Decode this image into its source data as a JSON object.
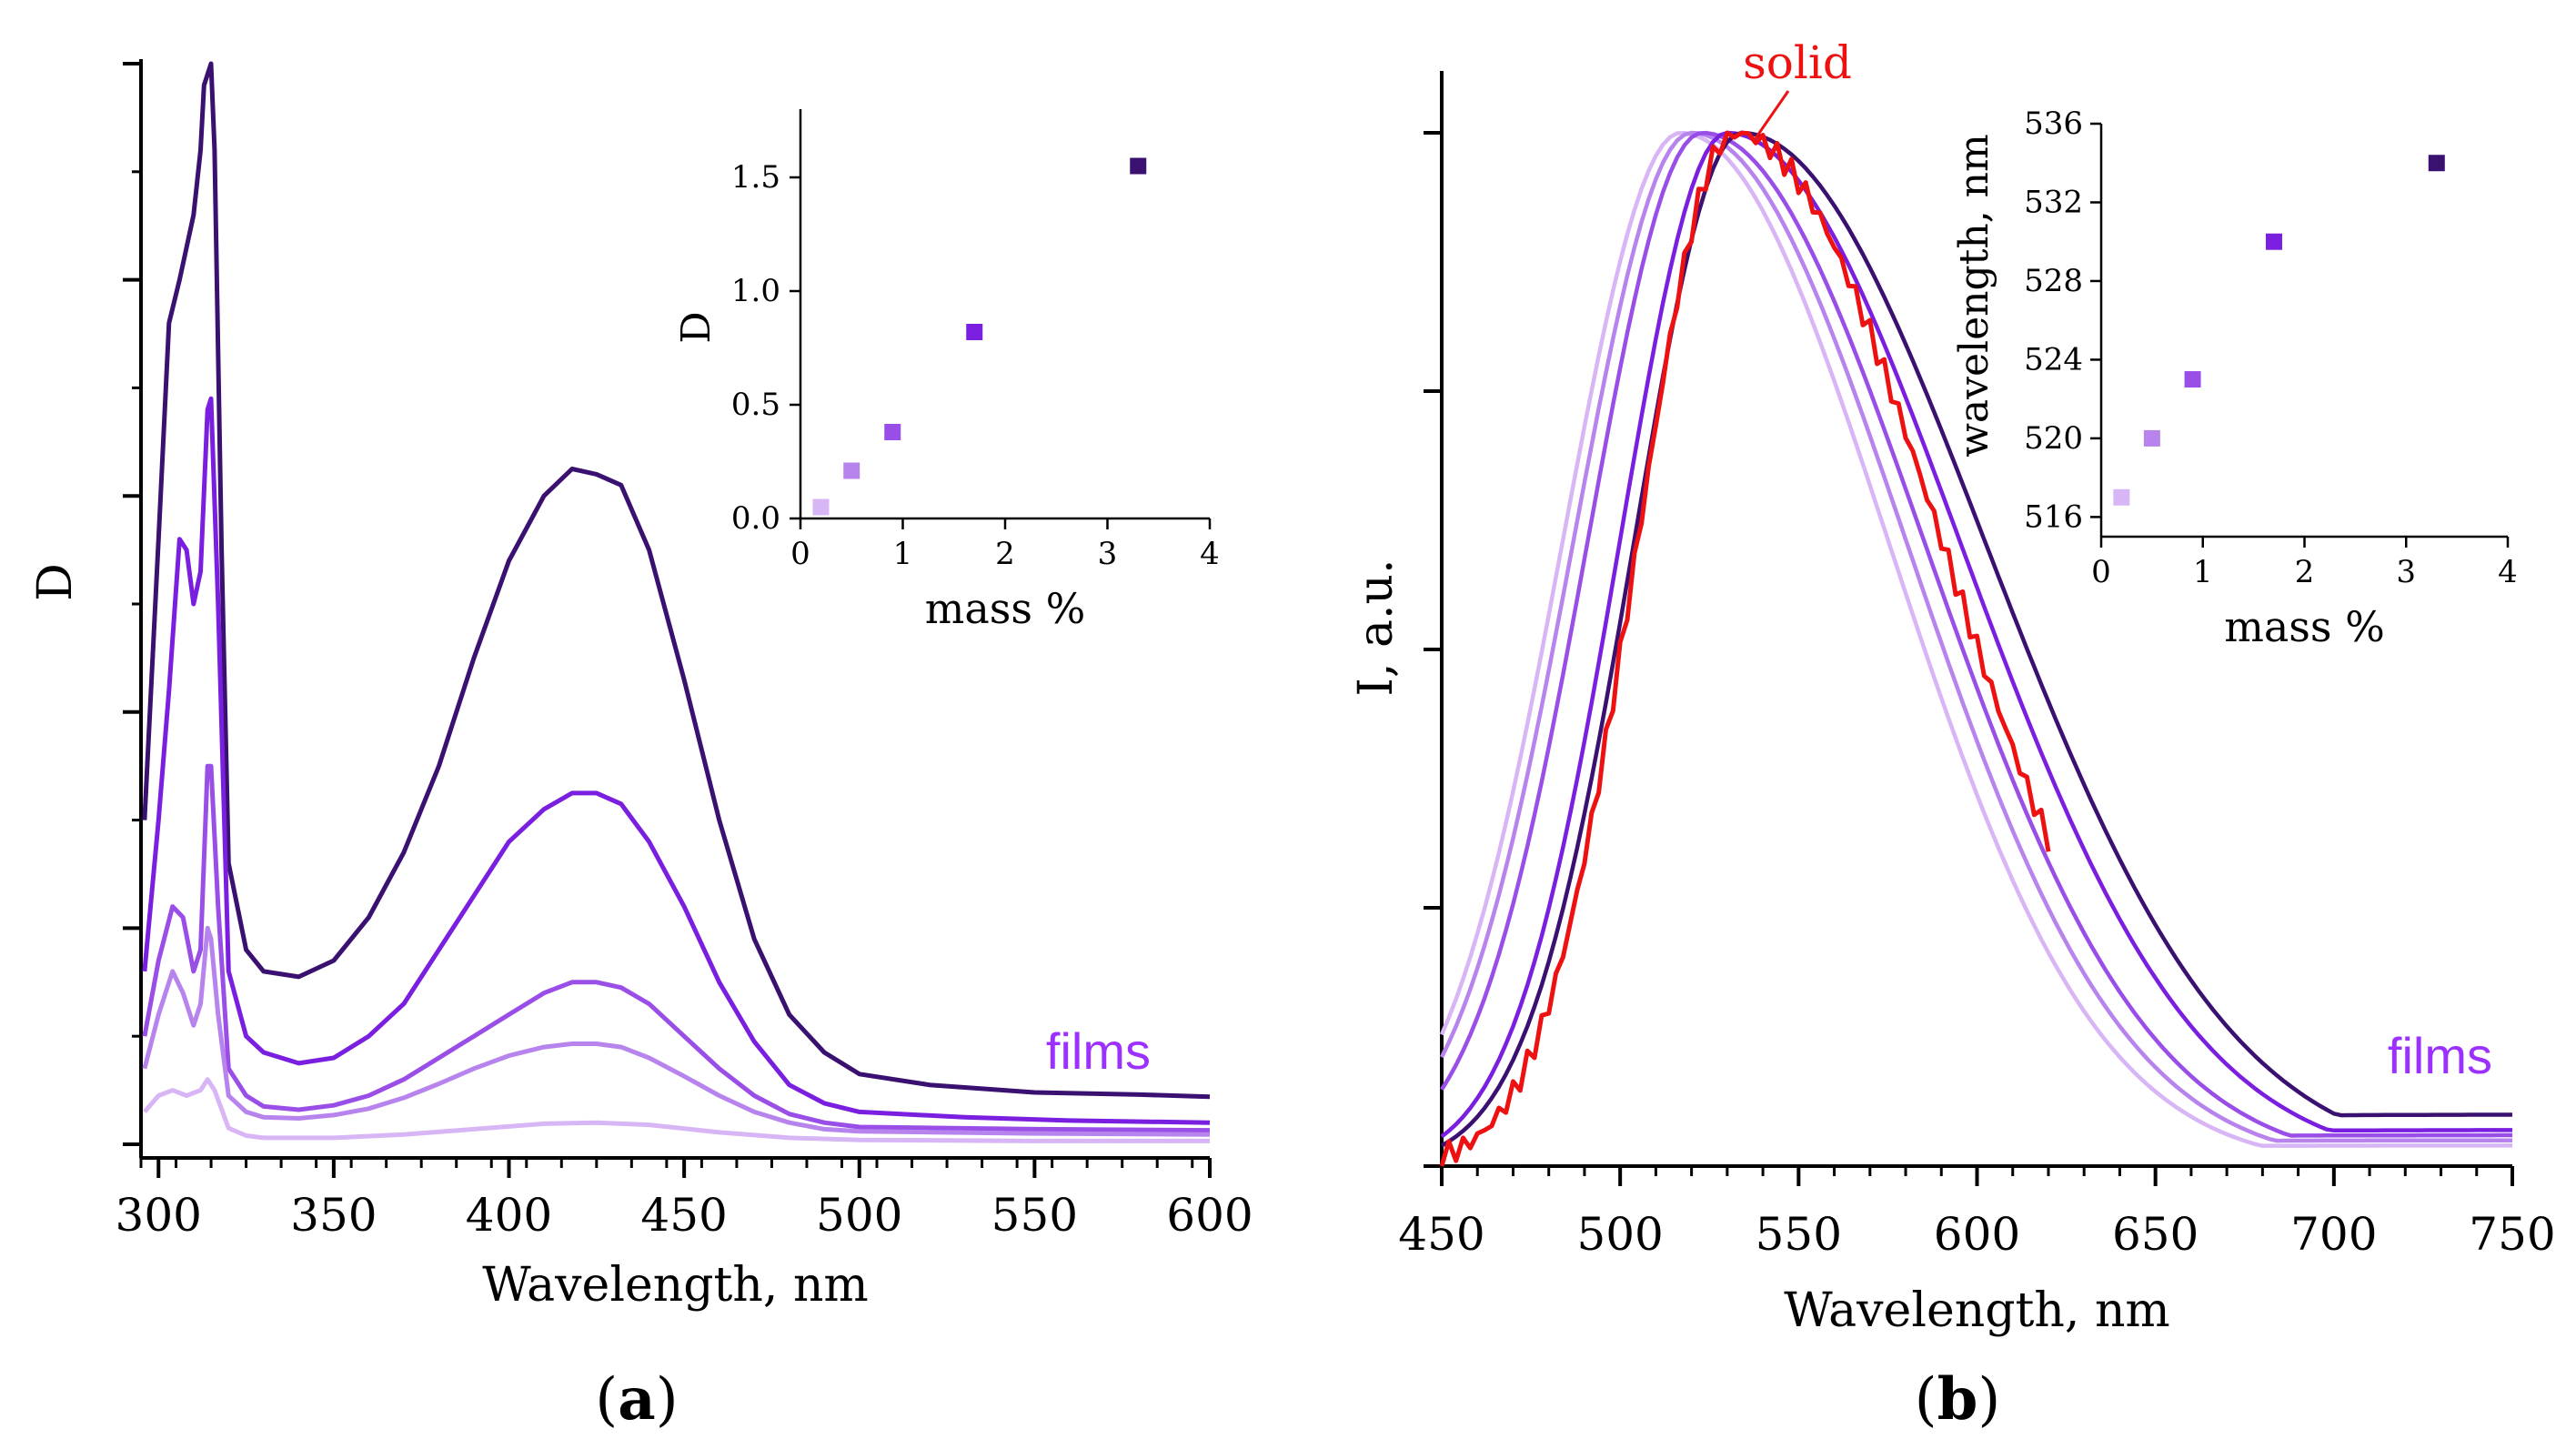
{
  "colors": {
    "dark": "#3a1070",
    "c2": "#7a1fe0",
    "c3": "#9a4ee8",
    "c4": "#b784ee",
    "c5": "#d8b6f6",
    "solid": "#ee1111",
    "films_text": "#9b30ff",
    "axis": "#000000"
  },
  "panel_labels": {
    "a": "a",
    "b": "b"
  },
  "chart_data": [
    {
      "id": "panel-a",
      "type": "line",
      "title": "",
      "xlabel": "Wavelength, nm",
      "ylabel": "D",
      "xlim": [
        295,
        600
      ],
      "ylim": [
        0,
        1
      ],
      "x_ticks": [
        300,
        350,
        400,
        450,
        500,
        550,
        600
      ],
      "y_ticks_unlabeled": [
        0,
        0.2,
        0.4,
        0.6,
        0.8,
        1.0
      ],
      "annotation": "films",
      "series": [
        {
          "name": "3.3 mass %",
          "color": "dark",
          "points": [
            [
              296,
              0.3
            ],
            [
              300,
              0.56
            ],
            [
              303,
              0.76
            ],
            [
              306,
              0.8
            ],
            [
              308,
              0.83
            ],
            [
              310,
              0.86
            ],
            [
              312,
              0.92
            ],
            [
              313,
              0.98
            ],
            [
              315,
              1.0
            ],
            [
              316,
              0.92
            ],
            [
              318,
              0.55
            ],
            [
              320,
              0.26
            ],
            [
              325,
              0.18
            ],
            [
              330,
              0.16
            ],
            [
              340,
              0.155
            ],
            [
              350,
              0.17
            ],
            [
              360,
              0.21
            ],
            [
              370,
              0.27
            ],
            [
              380,
              0.35
            ],
            [
              390,
              0.45
            ],
            [
              400,
              0.54
            ],
            [
              410,
              0.6
            ],
            [
              418,
              0.625
            ],
            [
              425,
              0.62
            ],
            [
              432,
              0.61
            ],
            [
              440,
              0.55
            ],
            [
              450,
              0.43
            ],
            [
              460,
              0.3
            ],
            [
              470,
              0.19
            ],
            [
              480,
              0.12
            ],
            [
              490,
              0.085
            ],
            [
              500,
              0.065
            ],
            [
              520,
              0.055
            ],
            [
              550,
              0.048
            ],
            [
              580,
              0.046
            ],
            [
              600,
              0.044
            ]
          ]
        },
        {
          "name": "1.7 mass %",
          "color": "c2",
          "points": [
            [
              296,
              0.16
            ],
            [
              300,
              0.3
            ],
            [
              303,
              0.42
            ],
            [
              306,
              0.56
            ],
            [
              308,
              0.55
            ],
            [
              310,
              0.5
            ],
            [
              312,
              0.53
            ],
            [
              314,
              0.68
            ],
            [
              315,
              0.69
            ],
            [
              317,
              0.5
            ],
            [
              320,
              0.16
            ],
            [
              325,
              0.1
            ],
            [
              330,
              0.085
            ],
            [
              340,
              0.075
            ],
            [
              350,
              0.08
            ],
            [
              360,
              0.1
            ],
            [
              370,
              0.13
            ],
            [
              380,
              0.18
            ],
            [
              390,
              0.23
            ],
            [
              400,
              0.28
            ],
            [
              410,
              0.31
            ],
            [
              418,
              0.325
            ],
            [
              425,
              0.325
            ],
            [
              432,
              0.315
            ],
            [
              440,
              0.28
            ],
            [
              450,
              0.22
            ],
            [
              460,
              0.15
            ],
            [
              470,
              0.095
            ],
            [
              480,
              0.055
            ],
            [
              490,
              0.038
            ],
            [
              500,
              0.03
            ],
            [
              530,
              0.025
            ],
            [
              560,
              0.022
            ],
            [
              600,
              0.02
            ]
          ]
        },
        {
          "name": "0.9 mass %",
          "color": "c3",
          "points": [
            [
              296,
              0.1
            ],
            [
              300,
              0.17
            ],
            [
              304,
              0.22
            ],
            [
              307,
              0.21
            ],
            [
              310,
              0.16
            ],
            [
              312,
              0.18
            ],
            [
              314,
              0.35
            ],
            [
              315,
              0.35
            ],
            [
              317,
              0.22
            ],
            [
              320,
              0.07
            ],
            [
              325,
              0.045
            ],
            [
              330,
              0.035
            ],
            [
              340,
              0.032
            ],
            [
              350,
              0.036
            ],
            [
              360,
              0.045
            ],
            [
              370,
              0.06
            ],
            [
              380,
              0.08
            ],
            [
              390,
              0.1
            ],
            [
              400,
              0.12
            ],
            [
              410,
              0.14
            ],
            [
              418,
              0.15
            ],
            [
              425,
              0.15
            ],
            [
              432,
              0.145
            ],
            [
              440,
              0.13
            ],
            [
              450,
              0.1
            ],
            [
              460,
              0.07
            ],
            [
              470,
              0.045
            ],
            [
              480,
              0.028
            ],
            [
              490,
              0.02
            ],
            [
              500,
              0.016
            ],
            [
              550,
              0.014
            ],
            [
              600,
              0.013
            ]
          ]
        },
        {
          "name": "0.5 mass %",
          "color": "c4",
          "points": [
            [
              296,
              0.07
            ],
            [
              300,
              0.12
            ],
            [
              304,
              0.16
            ],
            [
              307,
              0.14
            ],
            [
              310,
              0.11
            ],
            [
              312,
              0.13
            ],
            [
              314,
              0.2
            ],
            [
              315,
              0.19
            ],
            [
              317,
              0.12
            ],
            [
              320,
              0.045
            ],
            [
              325,
              0.03
            ],
            [
              330,
              0.025
            ],
            [
              340,
              0.024
            ],
            [
              350,
              0.027
            ],
            [
              360,
              0.033
            ],
            [
              370,
              0.043
            ],
            [
              380,
              0.056
            ],
            [
              390,
              0.07
            ],
            [
              400,
              0.082
            ],
            [
              410,
              0.09
            ],
            [
              418,
              0.093
            ],
            [
              425,
              0.093
            ],
            [
              432,
              0.09
            ],
            [
              440,
              0.08
            ],
            [
              450,
              0.063
            ],
            [
              460,
              0.045
            ],
            [
              470,
              0.03
            ],
            [
              480,
              0.02
            ],
            [
              490,
              0.014
            ],
            [
              500,
              0.012
            ],
            [
              550,
              0.01
            ],
            [
              600,
              0.009
            ]
          ]
        },
        {
          "name": "0.2 mass %",
          "color": "c5",
          "points": [
            [
              296,
              0.03
            ],
            [
              300,
              0.045
            ],
            [
              304,
              0.05
            ],
            [
              308,
              0.045
            ],
            [
              312,
              0.05
            ],
            [
              314,
              0.06
            ],
            [
              316,
              0.05
            ],
            [
              320,
              0.015
            ],
            [
              325,
              0.008
            ],
            [
              330,
              0.006
            ],
            [
              350,
              0.006
            ],
            [
              370,
              0.009
            ],
            [
              390,
              0.014
            ],
            [
              410,
              0.019
            ],
            [
              425,
              0.02
            ],
            [
              440,
              0.018
            ],
            [
              460,
              0.011
            ],
            [
              480,
              0.006
            ],
            [
              500,
              0.004
            ],
            [
              550,
              0.003
            ],
            [
              600,
              0.003
            ]
          ]
        }
      ],
      "inset": {
        "xlabel": "mass %",
        "ylabel": "D",
        "xlim": [
          0,
          4
        ],
        "ylim": [
          0,
          1.8
        ],
        "x_ticks": [
          0,
          1,
          2,
          3,
          4
        ],
        "y_ticks": [
          0.0,
          0.5,
          1.0,
          1.5
        ],
        "y_tick_labels": [
          "0.0",
          "0.5",
          "1.0",
          "1.5"
        ],
        "points": [
          {
            "x": 0.2,
            "y": 0.05,
            "color": "c5"
          },
          {
            "x": 0.5,
            "y": 0.21,
            "color": "c4"
          },
          {
            "x": 0.9,
            "y": 0.38,
            "color": "c3"
          },
          {
            "x": 1.7,
            "y": 0.82,
            "color": "c2"
          },
          {
            "x": 3.3,
            "y": 1.55,
            "color": "dark"
          }
        ]
      }
    },
    {
      "id": "panel-b",
      "type": "line",
      "title": "",
      "xlabel": "Wavelength, nm",
      "ylabel": "I, a.u.",
      "xlim": [
        450,
        750
      ],
      "ylim": [
        0,
        1.0
      ],
      "x_ticks": [
        450,
        500,
        550,
        600,
        650,
        700,
        750
      ],
      "y_ticks_unlabeled": [
        0,
        0.25,
        0.5,
        0.75,
        1.0
      ],
      "annotation": "films",
      "solid_label": "solid",
      "series": [
        {
          "name": "0.2 mass %",
          "color": "c5",
          "peak": 517,
          "wl": 33,
          "wr": 58,
          "tail": 0.02
        },
        {
          "name": "0.5 mass %",
          "color": "c4",
          "peak": 520,
          "wl": 33,
          "wr": 60,
          "tail": 0.025
        },
        {
          "name": "0.9 mass %",
          "color": "c3",
          "peak": 523,
          "wl": 32,
          "wr": 62,
          "tail": 0.03
        },
        {
          "name": "1.7 mass %",
          "color": "c2",
          "peak": 530,
          "wl": 30,
          "wr": 65,
          "tail": 0.035
        },
        {
          "name": "3.3 mass %",
          "color": "dark",
          "peak": 534,
          "wl": 30,
          "wr": 68,
          "tail": 0.05
        },
        {
          "name": "solid",
          "color": "solid",
          "peak": 532,
          "wl": 27,
          "wr": 58,
          "tail": 0.0,
          "xmax": 620
        }
      ],
      "inset": {
        "xlabel": "mass %",
        "ylabel": "wavelength, nm",
        "xlim": [
          0,
          4
        ],
        "ylim": [
          515,
          536
        ],
        "x_ticks": [
          0,
          1,
          2,
          3,
          4
        ],
        "y_ticks": [
          516,
          520,
          524,
          528,
          532,
          536
        ],
        "points": [
          {
            "x": 0.2,
            "y": 517,
            "color": "c5"
          },
          {
            "x": 0.5,
            "y": 520,
            "color": "c4"
          },
          {
            "x": 0.9,
            "y": 523,
            "color": "c3"
          },
          {
            "x": 1.7,
            "y": 530,
            "color": "c2"
          },
          {
            "x": 3.3,
            "y": 534,
            "color": "dark"
          }
        ]
      }
    }
  ]
}
